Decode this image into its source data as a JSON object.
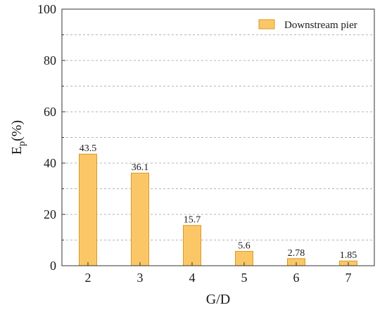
{
  "chart_data": {
    "type": "bar",
    "title": "",
    "xlabel": "G/D",
    "ylabel": {
      "base": "E",
      "subscript": "p",
      "suffix": "(%)"
    },
    "categories": [
      "2",
      "3",
      "4",
      "5",
      "6",
      "7"
    ],
    "series": [
      {
        "name": "Downstream pier",
        "values": [
          43.5,
          36.1,
          15.7,
          5.6,
          2.78,
          1.85
        ],
        "labels": [
          "43.5",
          "36.1",
          "15.7",
          "5.6",
          "2.78",
          "1.85"
        ],
        "color": "#fbc766",
        "edge_color": "#d99a22"
      }
    ],
    "ylim": [
      0,
      100
    ],
    "yticks": [
      "0",
      "20",
      "40",
      "60",
      "80",
      "100"
    ],
    "grid": "dashed horizontal",
    "legend_position": "top-right"
  }
}
